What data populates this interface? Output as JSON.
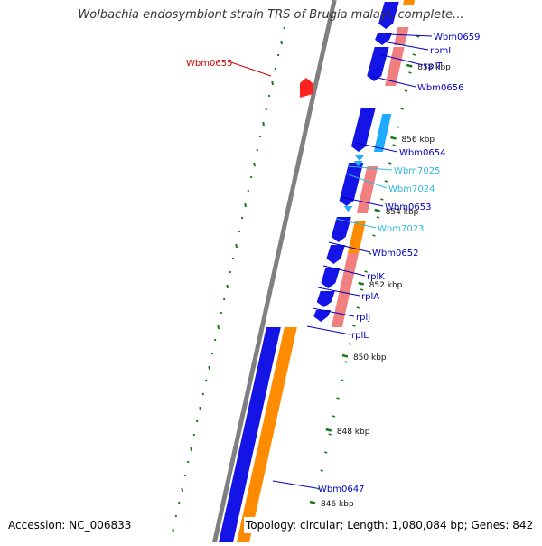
{
  "title": "Wolbachia endosymbiont strain TRS of Brugia malayi, complete...",
  "accession_text": "Accession: NC_006833",
  "info_text": "Topology: circular; Length: 1,080,084 bp; Genes: 842",
  "colors": {
    "background": "#ffffff",
    "backbone": "#808080",
    "forward_gene": "#1414e6",
    "reverse_gene": "#ff8c00",
    "rrna_block": "#f08080",
    "trna": "#1eaaff",
    "pseudo_gene": "#ff2020",
    "tick": "#1a7a1a",
    "label_default": "#0000c0",
    "label_trna": "#30b8e0",
    "label_selected": "#d00000"
  },
  "ticks": [
    {
      "label": "858 kbp"
    },
    {
      "label": "856 kbp"
    },
    {
      "label": "854 kbp"
    },
    {
      "label": "852 kbp"
    },
    {
      "label": "850 kbp"
    },
    {
      "label": "848 kbp"
    },
    {
      "label": "846 kbp"
    }
  ],
  "gene_labels": [
    {
      "name": "Wbm0659",
      "kind": "gene"
    },
    {
      "name": "rpmI",
      "kind": "gene"
    },
    {
      "name": "rplT",
      "kind": "gene"
    },
    {
      "name": "Wbm0656",
      "kind": "gene"
    },
    {
      "name": "Wbm0655",
      "kind": "selected"
    },
    {
      "name": "Wbm0654",
      "kind": "gene"
    },
    {
      "name": "Wbm7025",
      "kind": "trna"
    },
    {
      "name": "Wbm7024",
      "kind": "trna"
    },
    {
      "name": "Wbm0653",
      "kind": "gene"
    },
    {
      "name": "Wbm7023",
      "kind": "trna"
    },
    {
      "name": "Wbm0652",
      "kind": "gene"
    },
    {
      "name": "rplK",
      "kind": "gene"
    },
    {
      "name": "rplA",
      "kind": "gene"
    },
    {
      "name": "rplJ",
      "kind": "gene"
    },
    {
      "name": "rplL",
      "kind": "gene"
    },
    {
      "name": "Wbm0647",
      "kind": "gene"
    }
  ]
}
